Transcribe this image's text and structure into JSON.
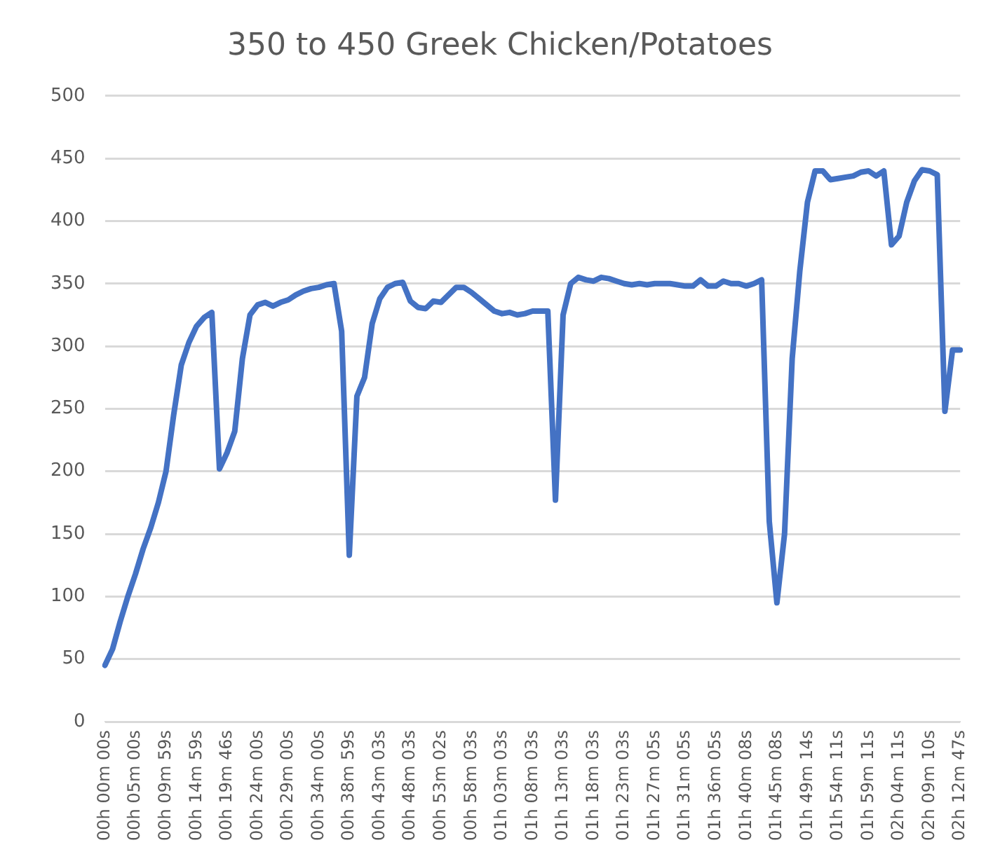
{
  "chart_data": {
    "type": "line",
    "title": "350 to 450 Greek Chicken/Potatoes",
    "categories": [
      "00h 00m 00s",
      null,
      null,
      null,
      "00h 05m 00s",
      null,
      null,
      null,
      "00h 09m 59s",
      null,
      null,
      null,
      "00h 14m 59s",
      null,
      null,
      null,
      "00h 19m 46s",
      null,
      null,
      null,
      "00h 24m 00s",
      null,
      null,
      null,
      "00h 29m 00s",
      null,
      null,
      null,
      "00h 34m 00s",
      null,
      null,
      null,
      "00h 38m 59s",
      null,
      null,
      null,
      "00h 43m 03s",
      null,
      null,
      null,
      "00h 48m 03s",
      null,
      null,
      null,
      "00h 53m 02s",
      null,
      null,
      null,
      "00h 58m 03s",
      null,
      null,
      null,
      "01h 03m 03s",
      null,
      null,
      null,
      "01h 08m 03s",
      null,
      null,
      null,
      "01h 13m 03s",
      null,
      null,
      null,
      "01h 18m 03s",
      null,
      null,
      null,
      "01h 23m 03s",
      null,
      null,
      null,
      "01h 27m 05s",
      null,
      null,
      null,
      "01h 31m 05s",
      null,
      null,
      null,
      "01h 36m 05s",
      null,
      null,
      null,
      "01h 40m 08s",
      null,
      null,
      null,
      "01h 45m 08s",
      null,
      null,
      null,
      "01h 49m 14s",
      null,
      null,
      null,
      "01h 54m 11s",
      null,
      null,
      null,
      "01h 59m 11s",
      null,
      null,
      null,
      "02h 04m 11s",
      null,
      null,
      null,
      "02h 09m 10s",
      null,
      null,
      null,
      "02h 12m 47s"
    ],
    "series": [
      {
        "color": "#4472c4",
        "values": [
          45,
          58,
          80,
          100,
          118,
          138,
          155,
          175,
          200,
          245,
          285,
          303,
          316,
          323,
          327,
          202,
          215,
          232,
          290,
          325,
          333,
          335,
          332,
          335,
          337,
          341,
          344,
          346,
          347,
          349,
          350,
          312,
          133,
          260,
          275,
          318,
          338,
          347,
          350,
          351,
          336,
          331,
          330,
          336,
          335,
          341,
          347,
          347,
          343,
          338,
          333,
          328,
          326,
          327,
          325,
          326,
          328,
          328,
          328,
          177,
          325,
          350,
          355,
          353,
          352,
          355,
          354,
          352,
          350,
          349,
          350,
          349,
          350,
          350,
          350,
          349,
          348,
          348,
          353,
          348,
          348,
          352,
          350,
          350,
          348,
          350,
          353,
          160,
          95,
          150,
          290,
          360,
          415,
          440,
          440,
          433,
          434,
          435,
          436,
          439,
          440,
          436,
          440,
          381,
          388,
          415,
          432,
          441,
          440,
          437,
          248,
          297,
          297
        ]
      }
    ],
    "ylim": [
      0,
      500
    ],
    "yticks": [
      0,
      50,
      100,
      150,
      200,
      250,
      300,
      350,
      400,
      450,
      500
    ],
    "grid": "y",
    "legend": false,
    "marker": "none",
    "line_style": "solid"
  }
}
